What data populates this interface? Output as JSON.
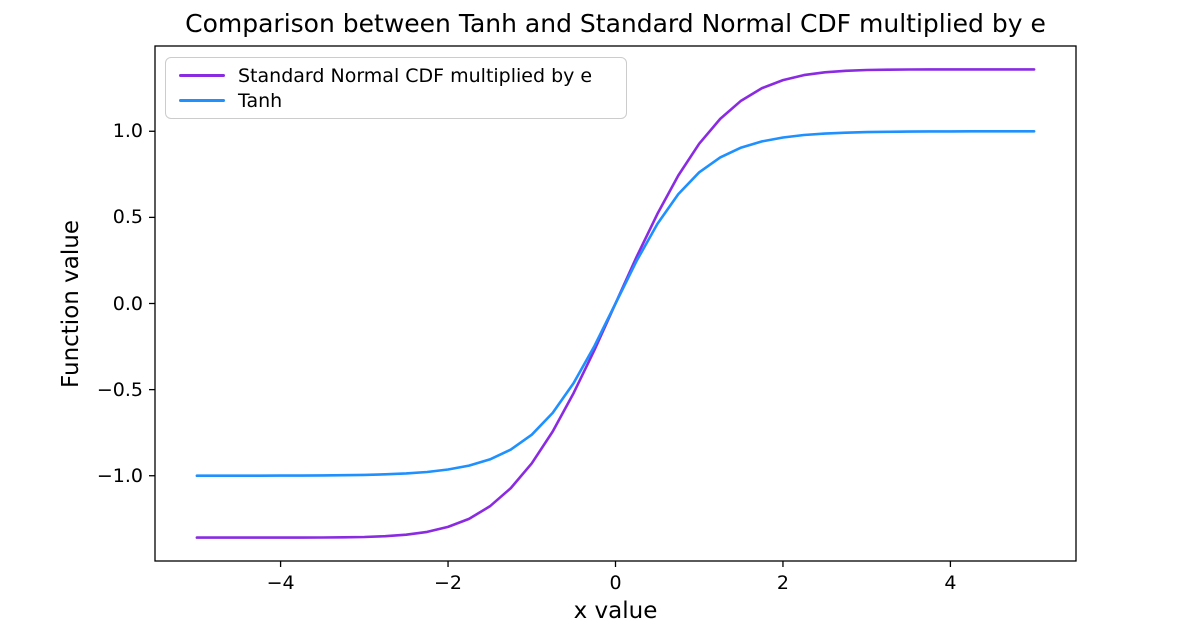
{
  "figure": {
    "background_color": "#ffffff",
    "frame_color": "#000000",
    "tick_color": "#000000",
    "text_color": "#000000",
    "legend_border_color": "#cccccc"
  },
  "chart_data": {
    "type": "line",
    "title": "Comparison between Tanh and Standard Normal CDF multiplied by e",
    "xlabel": "x value",
    "ylabel": "Function value",
    "xlim": [
      -5.5,
      5.5
    ],
    "ylim": [
      -1.495,
      1.495
    ],
    "grid": false,
    "legend_position": "upper left",
    "x_ticks": [
      {
        "value": -4,
        "label": "−4"
      },
      {
        "value": -2,
        "label": "−2"
      },
      {
        "value": 0,
        "label": "0"
      },
      {
        "value": 2,
        "label": "2"
      },
      {
        "value": 4,
        "label": "4"
      }
    ],
    "y_ticks": [
      {
        "value": 1.0,
        "label": "1.0"
      },
      {
        "value": 0.5,
        "label": "0.5"
      },
      {
        "value": 0.0,
        "label": "0.0"
      },
      {
        "value": -0.5,
        "label": "−0.5"
      },
      {
        "value": -1.0,
        "label": "−1.0"
      }
    ],
    "x": [
      -5,
      -4.75,
      -4.5,
      -4.25,
      -4,
      -3.75,
      -3.5,
      -3.25,
      -3,
      -2.75,
      -2.5,
      -2.25,
      -2,
      -1.75,
      -1.5,
      -1.25,
      -1,
      -0.75,
      -0.5,
      -0.25,
      0,
      0.25,
      0.5,
      0.75,
      1,
      1.25,
      1.5,
      1.75,
      2,
      2.25,
      2.5,
      2.75,
      3,
      3.25,
      3.5,
      3.75,
      4,
      4.25,
      4.5,
      4.75,
      5
    ],
    "series": [
      {
        "name": "Standard Normal CDF multiplied by e",
        "color": "#8a2be2",
        "values": [
          -1.3591,
          -1.3591,
          -1.3591,
          -1.3591,
          -1.3591,
          -1.3589,
          -1.3585,
          -1.3576,
          -1.3555,
          -1.351,
          -1.3423,
          -1.3259,
          -1.2973,
          -1.2503,
          -1.1775,
          -1.072,
          -0.9279,
          -0.7431,
          -0.5204,
          -0.2683,
          0,
          0.2683,
          0.5204,
          0.7431,
          0.9279,
          1.072,
          1.1775,
          1.2503,
          1.2973,
          1.3259,
          1.3423,
          1.351,
          1.3555,
          1.3576,
          1.3585,
          1.3589,
          1.3591,
          1.3591,
          1.3591,
          1.3591,
          1.3591
        ]
      },
      {
        "name": "Tanh",
        "color": "#1e90ff",
        "values": [
          -0.9999,
          -0.9999,
          -0.9998,
          -0.9996,
          -0.9993,
          -0.9989,
          -0.9982,
          -0.997,
          -0.9951,
          -0.9919,
          -0.9866,
          -0.978,
          -0.964,
          -0.9414,
          -0.9051,
          -0.8483,
          -0.7616,
          -0.6351,
          -0.4621,
          -0.2449,
          0,
          0.2449,
          0.4621,
          0.6351,
          0.7616,
          0.8483,
          0.9051,
          0.9414,
          0.964,
          0.978,
          0.9866,
          0.9919,
          0.9951,
          0.997,
          0.9982,
          0.9989,
          0.9993,
          0.9996,
          0.9998,
          0.9999,
          0.9999
        ]
      }
    ]
  }
}
